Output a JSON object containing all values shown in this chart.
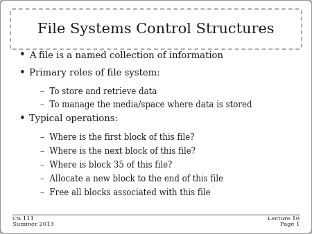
{
  "title": "File Systems Control Structures",
  "background_color": "#d4d4d4",
  "bullet_items": [
    {
      "level": 0,
      "text": "A file is a named collection of information"
    },
    {
      "level": 0,
      "text": "Primary roles of file system:"
    },
    {
      "level": 1,
      "text": "–  To store and retrieve data"
    },
    {
      "level": 1,
      "text": "–  To manage the media/space where data is stored"
    },
    {
      "level": 0,
      "text": "Typical operations:"
    },
    {
      "level": 1,
      "text": "–  Where is the first block of this file?"
    },
    {
      "level": 1,
      "text": "–  Where is the next block of this file?"
    },
    {
      "level": 1,
      "text": "–  Where is block 35 of this file?"
    },
    {
      "level": 1,
      "text": "–  Allocate a new block to the end of this file"
    },
    {
      "level": 1,
      "text": "–  Free all blocks associated with this file"
    }
  ],
  "footer_left_line1": "CS 111",
  "footer_left_line2": "Summer 2013",
  "footer_right_line1": "Lecture 10",
  "footer_right_line2": "Page 1",
  "title_fontsize": 15,
  "bullet0_fontsize": 9.5,
  "bullet1_fontsize": 8.5,
  "footer_fontsize": 6,
  "text_color": "#1a1a1a",
  "border_color": "#999999",
  "title_border_color": "#888888"
}
